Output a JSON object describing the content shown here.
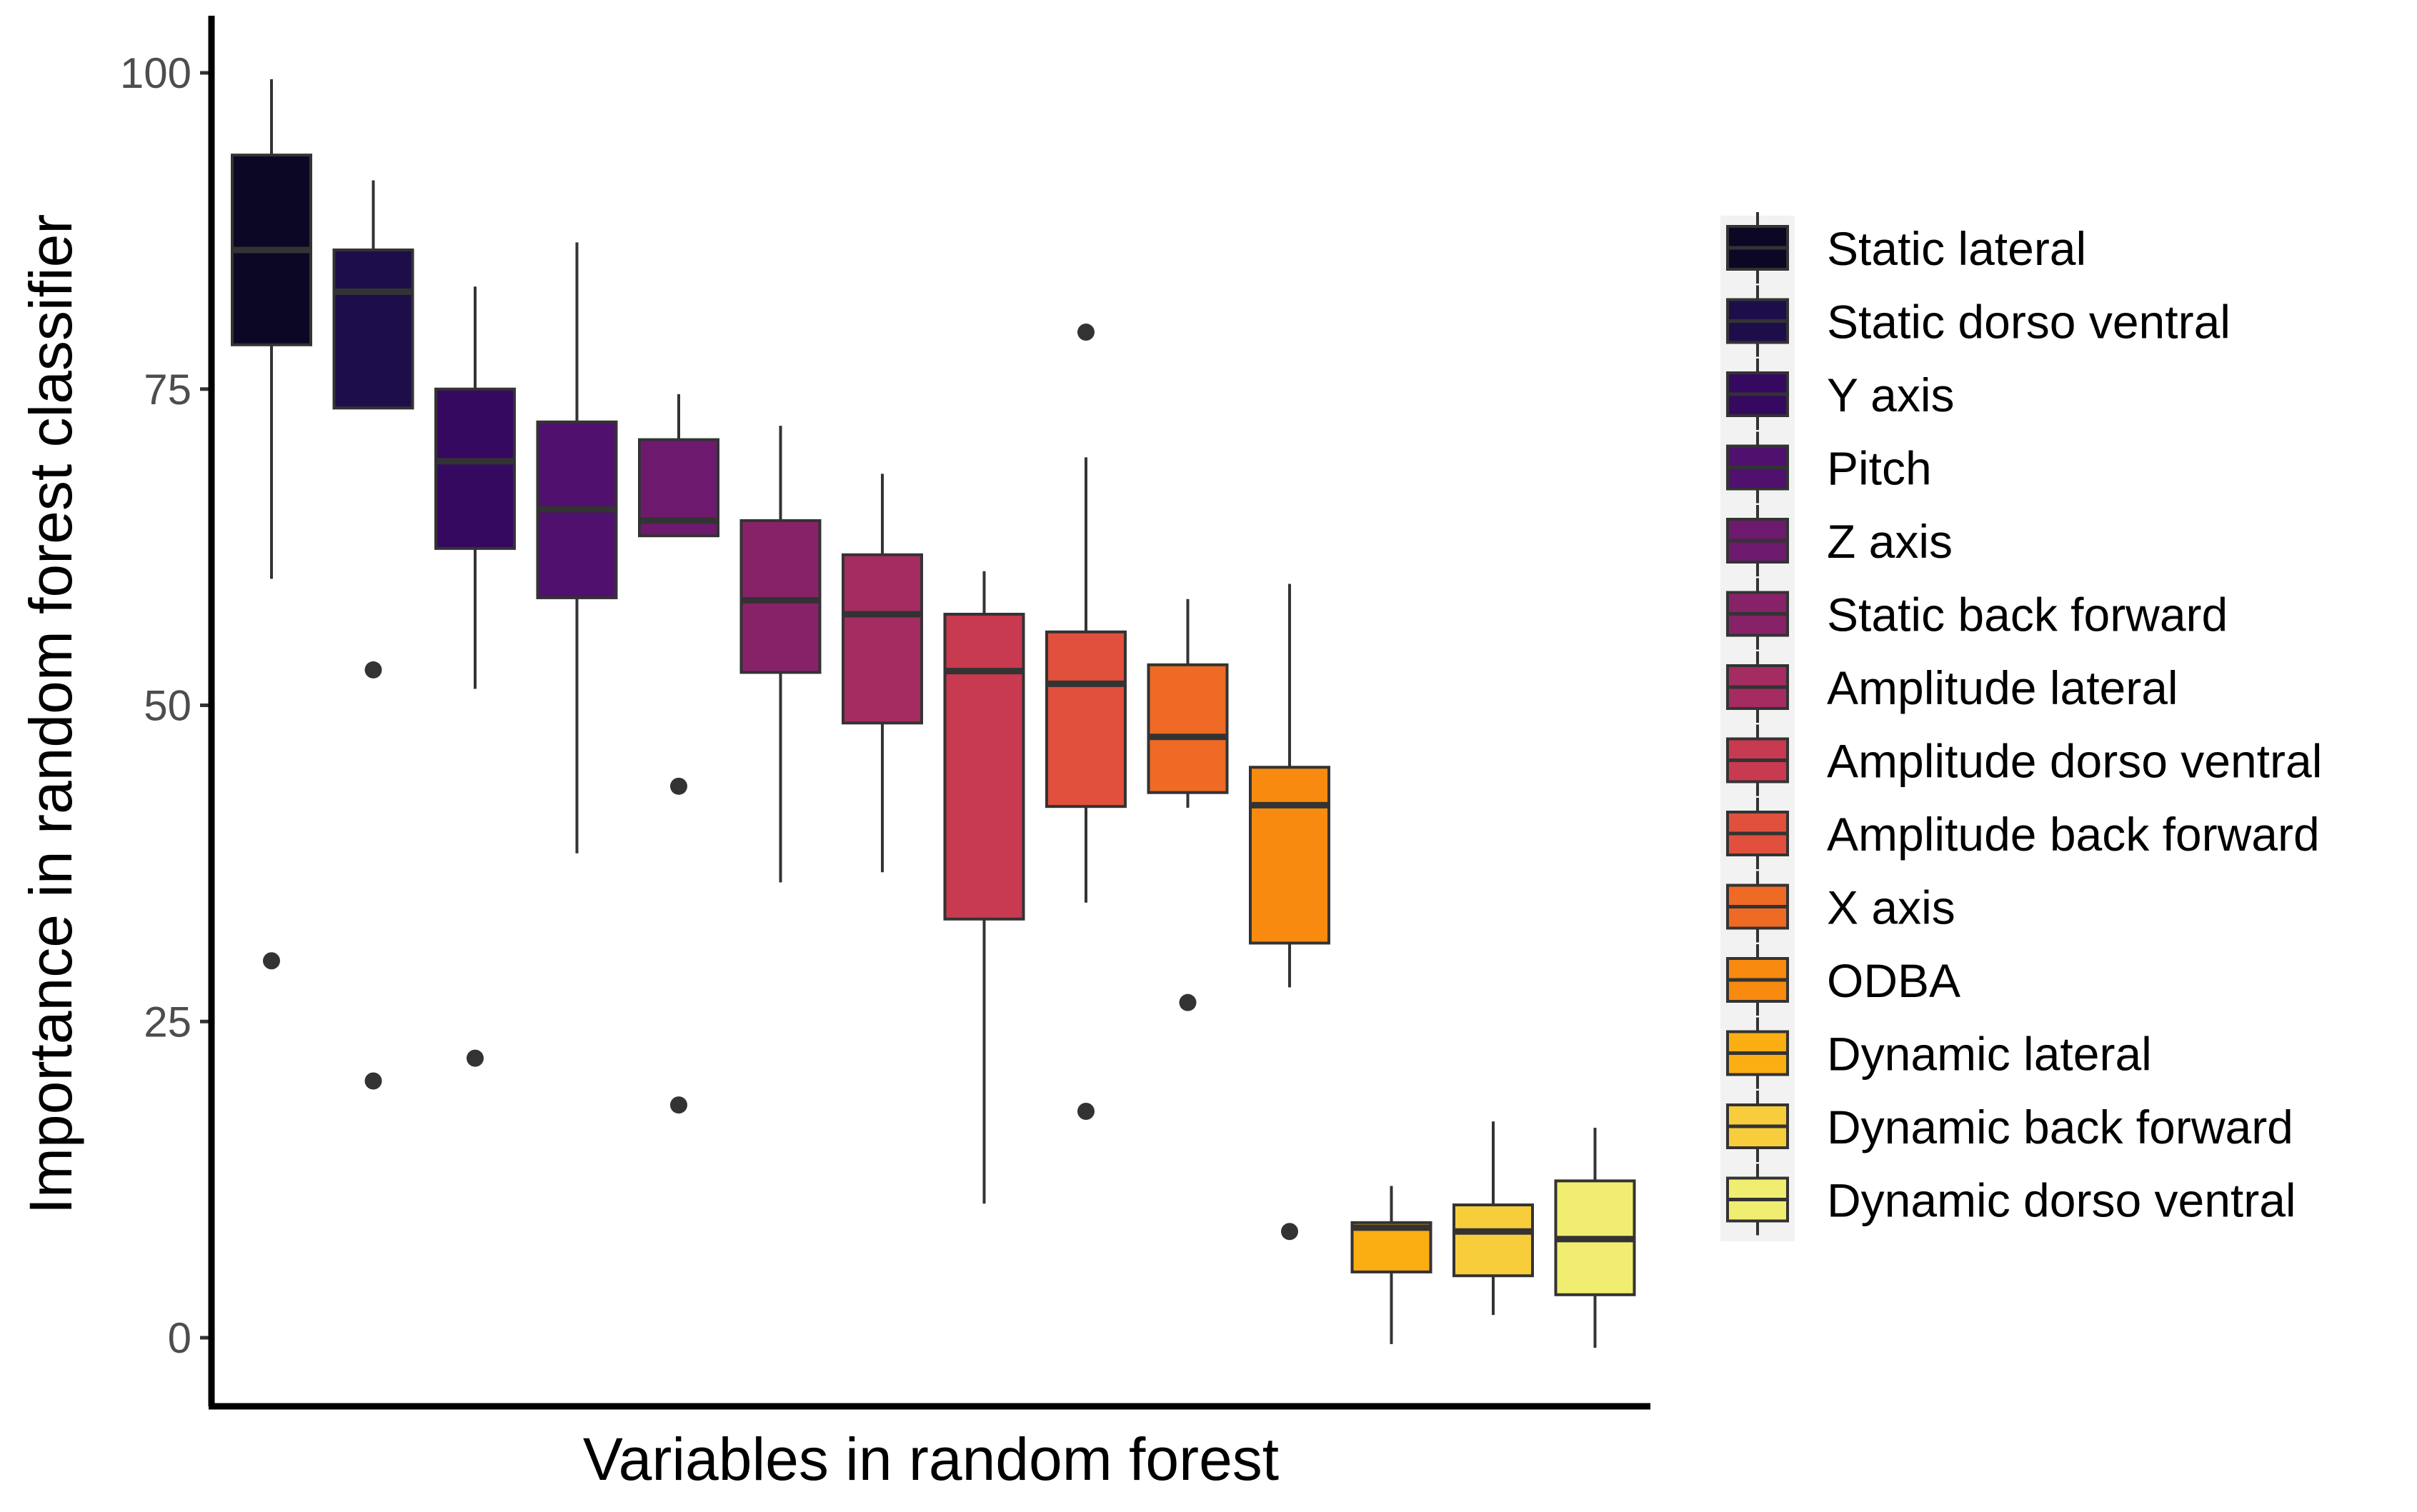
{
  "chart_data": {
    "type": "boxplot",
    "title": "",
    "xlabel": "Variables in random forest",
    "ylabel": "Importance in random forest classifier",
    "ylim": [
      -5.5,
      104.5
    ],
    "yticks": [
      0,
      25,
      50,
      75,
      100
    ],
    "ytick_labels": [
      "0",
      "25",
      "50",
      "75",
      "100"
    ],
    "grid": false,
    "legend": "right",
    "series": [
      {
        "name": "Static lateral",
        "color": "#0b0724",
        "whisker_low": 60,
        "q1": 78.5,
        "median": 86,
        "q3": 93.5,
        "whisker_high": 99.5,
        "outliers": [
          29.8
        ]
      },
      {
        "name": "Static dorso ventral",
        "color": "#1d0e4a",
        "whisker_low": 73.5,
        "q1": 73.5,
        "median": 82.7,
        "q3": 86,
        "whisker_high": 91.5,
        "outliers": [
          52.8,
          20.3
        ]
      },
      {
        "name": "Y axis",
        "color": "#360961",
        "whisker_low": 51.3,
        "q1": 62.4,
        "median": 69.3,
        "q3": 75,
        "whisker_high": 83.1,
        "outliers": [
          22.1
        ]
      },
      {
        "name": "Pitch",
        "color": "#50106e",
        "whisker_low": 38.3,
        "q1": 58.5,
        "median": 65.5,
        "q3": 72.4,
        "whisker_high": 86.6,
        "outliers": []
      },
      {
        "name": "Z axis",
        "color": "#6d1a6e",
        "whisker_low": 63.4,
        "q1": 63.4,
        "median": 64.6,
        "q3": 71,
        "whisker_high": 74.6,
        "outliers": [
          43.6,
          18.4
        ]
      },
      {
        "name": "Static back forward",
        "color": "#882268",
        "whisker_low": 36,
        "q1": 52.6,
        "median": 58.3,
        "q3": 64.6,
        "whisker_high": 72.1,
        "outliers": []
      },
      {
        "name": "Amplitude lateral",
        "color": "#a42c60",
        "whisker_low": 36.8,
        "q1": 48.6,
        "median": 57.2,
        "q3": 61.9,
        "whisker_high": 68.3,
        "outliers": []
      },
      {
        "name": "Amplitude dorso ventral",
        "color": "#c83a4f",
        "whisker_low": 10.6,
        "q1": 33.1,
        "median": 52.7,
        "q3": 57.2,
        "whisker_high": 60.6,
        "outliers": []
      },
      {
        "name": "Amplitude back forward",
        "color": "#e0503d",
        "whisker_low": 34.4,
        "q1": 42,
        "median": 51.7,
        "q3": 55.8,
        "whisker_high": 69.6,
        "outliers": [
          79.5,
          17.9
        ]
      },
      {
        "name": "X axis",
        "color": "#ef6a24",
        "whisker_low": 41.9,
        "q1": 43.1,
        "median": 47.5,
        "q3": 53.2,
        "whisker_high": 58.4,
        "outliers": [
          26.5
        ]
      },
      {
        "name": "ODBA",
        "color": "#f78a0f",
        "whisker_low": 27.7,
        "q1": 31.2,
        "median": 42.1,
        "q3": 45.1,
        "whisker_high": 59.6,
        "outliers": [
          8.4
        ]
      },
      {
        "name": "Dynamic lateral",
        "color": "#fbae12",
        "whisker_low": -0.5,
        "q1": 5.2,
        "median": 8.7,
        "q3": 9.1,
        "whisker_high": 12,
        "outliers": []
      },
      {
        "name": "Dynamic back forward",
        "color": "#f7cd3c",
        "whisker_low": 1.8,
        "q1": 4.9,
        "median": 8.4,
        "q3": 10.5,
        "whisker_high": 17.1,
        "outliers": []
      },
      {
        "name": "Dynamic dorso ventral",
        "color": "#f1ed71",
        "whisker_low": -0.8,
        "q1": 3.4,
        "median": 7.8,
        "q3": 12.4,
        "whisker_high": 16.6,
        "outliers": []
      }
    ]
  }
}
